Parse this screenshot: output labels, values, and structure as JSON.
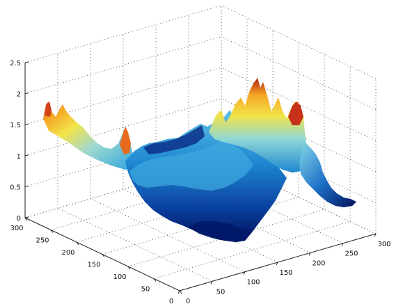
{
  "chart_data": {
    "type": "surface",
    "title": "",
    "xlabel": "",
    "ylabel": "",
    "zlabel": "",
    "x_ticks": [
      "0",
      "50",
      "100",
      "150",
      "200",
      "250",
      "300"
    ],
    "y_ticks": [
      "0",
      "50",
      "100",
      "150",
      "200",
      "250",
      "300"
    ],
    "z_ticks": [
      "0",
      "0.5",
      "1",
      "1.5",
      "2",
      "2.5"
    ],
    "xlim": [
      0,
      300
    ],
    "ylim": [
      0,
      300
    ],
    "zlim": [
      0,
      2.5
    ],
    "grid": true,
    "colormap": "jet",
    "colormap_stops": [
      "#00007f",
      "#0050c8",
      "#2aa3e0",
      "#7fd3e6",
      "#f2e44a",
      "#f5a623",
      "#d4371c",
      "#8b0000"
    ],
    "surface_profile": {
      "description_points": [
        {
          "x": 0,
          "y": 280,
          "z": 1.55
        },
        {
          "x": 0,
          "y": 240,
          "z": 1.4
        },
        {
          "x": 0,
          "y": 200,
          "z": 1.2
        },
        {
          "x": 0,
          "y": 150,
          "z": 1.05
        },
        {
          "x": 40,
          "y": 120,
          "z": 0.5
        },
        {
          "x": 100,
          "y": 60,
          "z": 0.2
        },
        {
          "x": 150,
          "y": 20,
          "z": 0.1
        },
        {
          "x": 220,
          "y": 10,
          "z": 1.2
        },
        {
          "x": 240,
          "y": 30,
          "z": 1.75
        },
        {
          "x": 260,
          "y": 60,
          "z": 1.6
        },
        {
          "x": 290,
          "y": 120,
          "z": 0.5
        },
        {
          "x": 300,
          "y": 160,
          "z": 0.3
        }
      ]
    }
  }
}
